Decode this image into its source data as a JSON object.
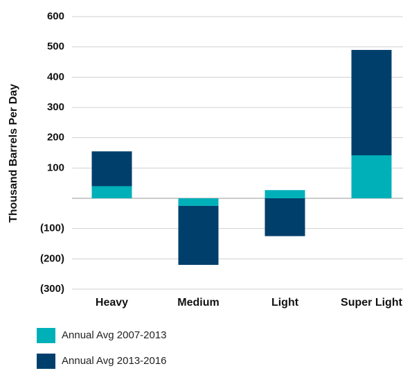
{
  "chart_data": {
    "type": "stacked_bar",
    "y_label": "Thousand Barrels Per Day",
    "categories": [
      "Heavy",
      "Medium",
      "Light",
      "Super Light"
    ],
    "series": [
      {
        "name": "Annual Avg 2007-2013",
        "color": "#00b0b9",
        "values": [
          40,
          -25,
          27,
          142
        ]
      },
      {
        "name": "Annual Avg 2013-2016",
        "color": "#003f6b",
        "values": [
          115,
          -195,
          -125,
          348
        ]
      }
    ],
    "ylim": [
      -300,
      600
    ],
    "yticks": [
      {
        "value": -300,
        "label": "(300)"
      },
      {
        "value": -200,
        "label": "(200)"
      },
      {
        "value": -100,
        "label": "(100)"
      },
      100,
      200,
      300,
      400,
      500,
      600
    ],
    "grid": true
  }
}
